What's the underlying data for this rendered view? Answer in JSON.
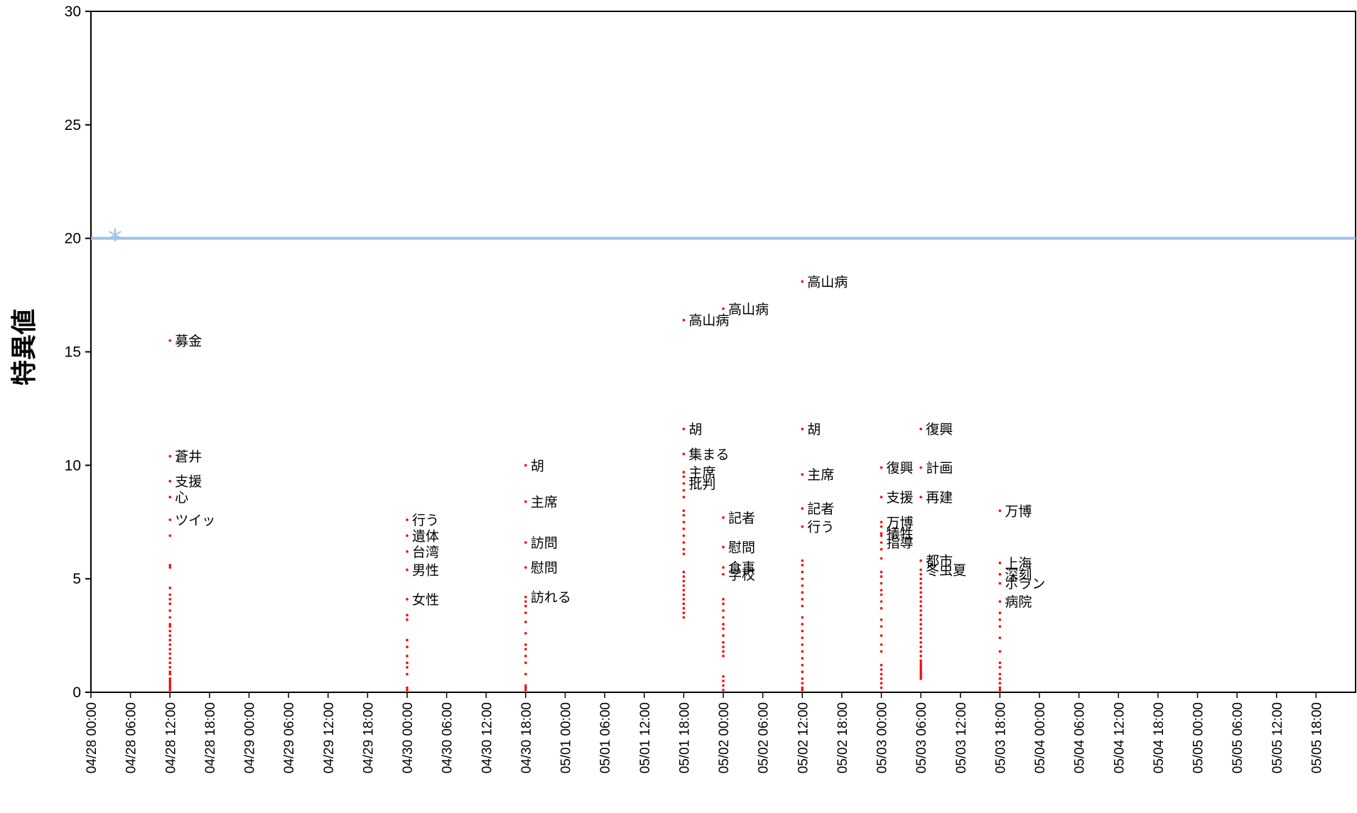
{
  "chart_data": {
    "type": "scatter",
    "title": "",
    "xlabel": "",
    "ylabel": "特異値",
    "ylim": [
      0,
      30
    ],
    "yticks": [
      0,
      5,
      10,
      15,
      20,
      25,
      30
    ],
    "xlim": [
      "04/28 00:00",
      "05/06 00:00"
    ],
    "xtick_labels": [
      "04/28 00:00",
      "04/28 06:00",
      "04/28 12:00",
      "04/28 18:00",
      "04/29 00:00",
      "04/29 06:00",
      "04/29 12:00",
      "04/29 18:00",
      "04/30 00:00",
      "04/30 06:00",
      "04/30 12:00",
      "04/30 18:00",
      "05/01 00:00",
      "05/01 06:00",
      "05/01 12:00",
      "05/01 18:00",
      "05/02 00:00",
      "05/02 06:00",
      "05/02 12:00",
      "05/02 18:00",
      "05/03 00:00",
      "05/03 06:00",
      "05/03 12:00",
      "05/03 18:00",
      "05/04 00:00",
      "05/04 06:00",
      "05/04 12:00",
      "05/04 18:00",
      "05/05 00:00",
      "05/05 06:00",
      "05/05 12:00",
      "05/05 18:00"
    ],
    "grid": false,
    "colors": {
      "points": "#ff0000",
      "threshold": "#9dc3e6",
      "axis": "#000000"
    },
    "threshold": {
      "value": 20,
      "marker": "*"
    },
    "columns": [
      {
        "x": "04/28 12:00",
        "labeled": [
          {
            "word": "募金",
            "y": 15.5
          },
          {
            "word": "蒼井",
            "y": 10.4
          },
          {
            "word": "支援",
            "y": 9.3
          },
          {
            "word": "心",
            "y": 8.6
          },
          {
            "word": "ツイッ",
            "y": 7.6
          }
        ],
        "points": [
          6.9,
          5.6,
          5.5,
          4.6,
          4.3,
          4.1,
          3.9,
          3.6,
          3.3,
          3.0,
          2.9,
          2.7,
          2.5,
          2.3,
          2.1,
          1.9,
          1.7,
          1.5,
          1.3,
          1.1,
          0.9,
          0.8,
          0.6,
          0.5,
          0.4,
          0.3,
          0.2,
          0.1
        ]
      },
      {
        "x": "04/30 00:00",
        "labeled": [
          {
            "word": "行う",
            "y": 7.6
          },
          {
            "word": "遺体",
            "y": 6.9
          },
          {
            "word": "台湾",
            "y": 6.2
          },
          {
            "word": "男性",
            "y": 5.4
          },
          {
            "word": "女性",
            "y": 4.1
          }
        ],
        "points": [
          3.4,
          3.2,
          2.3,
          2.0,
          1.6,
          1.3,
          1.1,
          0.8,
          0.2,
          0.1
        ]
      },
      {
        "x": "04/30 18:00",
        "labeled": [
          {
            "word": "胡",
            "y": 10.0
          },
          {
            "word": "主席",
            "y": 8.4
          },
          {
            "word": "訪問",
            "y": 6.6
          },
          {
            "word": "慰問",
            "y": 5.5
          },
          {
            "word": "訪れる",
            "y": 4.2
          }
        ],
        "points": [
          4.0,
          3.8,
          3.5,
          3.1,
          2.6,
          2.1,
          1.9,
          1.6,
          1.3,
          0.8,
          0.3,
          0.2,
          0.1
        ]
      },
      {
        "x": "05/01 18:00",
        "labeled": [
          {
            "word": "高山病",
            "y": 16.4
          },
          {
            "word": "胡",
            "y": 11.6
          },
          {
            "word": "集まる",
            "y": 10.5
          },
          {
            "word": "主席",
            "y": 9.7
          },
          {
            "word": "批判",
            "y": 9.2
          }
        ],
        "points": [
          9.5,
          8.9,
          8.6,
          8.0,
          7.8,
          7.5,
          7.2,
          6.9,
          6.6,
          6.3,
          6.1,
          5.3,
          5.1,
          4.9,
          4.7,
          4.5,
          4.3,
          4.1,
          3.9,
          3.7,
          3.5,
          3.3
        ]
      },
      {
        "x": "05/02 00:00",
        "labeled": [
          {
            "word": "高山病",
            "y": 16.9
          },
          {
            "word": "記者",
            "y": 7.7
          },
          {
            "word": "慰問",
            "y": 6.4
          },
          {
            "word": "食事",
            "y": 5.5
          },
          {
            "word": "学校",
            "y": 5.2
          }
        ],
        "points": [
          4.1,
          3.9,
          3.6,
          3.3,
          3.0,
          2.8,
          2.5,
          2.2,
          2.0,
          1.8,
          1.6,
          0.7,
          0.5,
          0.3,
          0.1
        ]
      },
      {
        "x": "05/02 12:00",
        "labeled": [
          {
            "word": "高山病",
            "y": 18.1
          },
          {
            "word": "胡",
            "y": 11.6
          },
          {
            "word": "主席",
            "y": 9.6
          },
          {
            "word": "記者",
            "y": 8.1
          },
          {
            "word": "行う",
            "y": 7.3
          }
        ],
        "points": [
          5.8,
          5.6,
          5.3,
          5.0,
          4.7,
          4.4,
          4.1,
          3.8,
          3.3,
          3.0,
          2.7,
          2.4,
          2.1,
          1.8,
          1.5,
          1.2,
          0.9,
          0.6,
          0.4,
          0.2,
          0.1
        ]
      },
      {
        "x": "05/03 00:00",
        "labeled": [
          {
            "word": "復興",
            "y": 9.9
          },
          {
            "word": "支援",
            "y": 8.6
          },
          {
            "word": "万博",
            "y": 7.5
          },
          {
            "word": "犠牲",
            "y": 7.0
          },
          {
            "word": "指導",
            "y": 6.6
          }
        ],
        "points": [
          7.3,
          6.9,
          6.3,
          5.9,
          5.3,
          5.1,
          4.8,
          4.5,
          4.3,
          4.0,
          3.7,
          3.2,
          2.9,
          2.5,
          2.1,
          1.8,
          1.2,
          1.0,
          0.8,
          0.6,
          0.4,
          0.2
        ]
      },
      {
        "x": "05/03 06:00",
        "labeled": [
          {
            "word": "復興",
            "y": 11.6
          },
          {
            "word": "計画",
            "y": 9.9
          },
          {
            "word": "再建",
            "y": 8.6
          },
          {
            "word": "都市",
            "y": 5.8
          },
          {
            "word": "冬虫夏",
            "y": 5.4
          }
        ],
        "points": [
          5.2,
          5.0,
          4.8,
          4.6,
          4.4,
          4.2,
          4.0,
          3.8,
          3.6,
          3.4,
          3.2,
          3.0,
          2.8,
          2.6,
          2.4,
          2.2,
          2.0,
          1.8,
          1.6,
          1.4,
          1.3,
          1.2,
          1.1,
          1.0,
          0.9,
          0.8,
          0.7,
          0.6
        ]
      },
      {
        "x": "05/03 18:00",
        "labeled": [
          {
            "word": "万博",
            "y": 8.0
          },
          {
            "word": "上海",
            "y": 5.7
          },
          {
            "word": "深刻",
            "y": 5.2
          },
          {
            "word": "ボラン",
            "y": 4.8
          },
          {
            "word": "病院",
            "y": 4.0
          }
        ],
        "points": [
          3.5,
          3.2,
          2.9,
          2.4,
          1.8,
          1.3,
          1.1,
          0.8,
          0.6,
          0.4,
          0.2,
          0.1
        ]
      }
    ]
  }
}
